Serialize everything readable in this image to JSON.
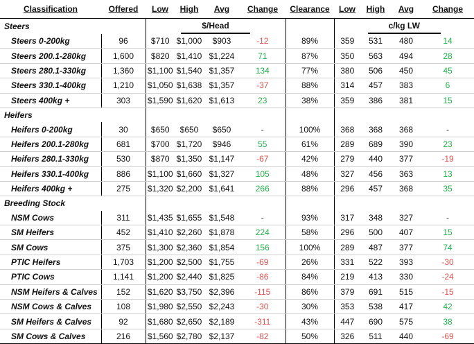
{
  "headers": {
    "classification": "Classification",
    "offered": "Offered",
    "low": "Low",
    "high": "High",
    "avg": "Avg",
    "change": "Change",
    "clearance": "Clearance",
    "low2": "Low",
    "high2": "High",
    "avg2": "Avg",
    "change2": "Change"
  },
  "units": {
    "head": "$/Head",
    "kg": "c/kg LW"
  },
  "groups": {
    "steers": "Steers",
    "heifers": "Heifers",
    "breeding": "Breeding Stock"
  },
  "colors": {
    "positive": "#22b14c",
    "negative": "#d9534f"
  },
  "rows": [
    {
      "label": "Steers 0-200kg",
      "offered": "96",
      "low": "$710",
      "high": "$1,000",
      "avg": "$903",
      "change": "-12",
      "clearance": "89%",
      "kg_low": "359",
      "kg_high": "531",
      "kg_avg": "480",
      "kg_change": "14"
    },
    {
      "label": "Steers 200.1-280kg",
      "offered": "1,600",
      "low": "$820",
      "high": "$1,410",
      "avg": "$1,224",
      "change": "71",
      "clearance": "87%",
      "kg_low": "350",
      "kg_high": "563",
      "kg_avg": "494",
      "kg_change": "28"
    },
    {
      "label": "Steers 280.1-330kg",
      "offered": "1,360",
      "low": "$1,100",
      "high": "$1,540",
      "avg": "$1,357",
      "change": "134",
      "clearance": "77%",
      "kg_low": "380",
      "kg_high": "506",
      "kg_avg": "450",
      "kg_change": "45"
    },
    {
      "label": "Steers 330.1-400kg",
      "offered": "1,210",
      "low": "$1,050",
      "high": "$1,638",
      "avg": "$1,357",
      "change": "-37",
      "clearance": "88%",
      "kg_low": "314",
      "kg_high": "457",
      "kg_avg": "383",
      "kg_change": "6"
    },
    {
      "label": "Steers 400kg +",
      "offered": "303",
      "low": "$1,590",
      "high": "$1,620",
      "avg": "$1,613",
      "change": "23",
      "clearance": "38%",
      "kg_low": "359",
      "kg_high": "386",
      "kg_avg": "381",
      "kg_change": "15"
    },
    {
      "label": "Heifers 0-200kg",
      "offered": "30",
      "low": "$650",
      "high": "$650",
      "avg": "$650",
      "change": "-",
      "clearance": "100%",
      "kg_low": "368",
      "kg_high": "368",
      "kg_avg": "368",
      "kg_change": "-"
    },
    {
      "label": "Heifers 200.1-280kg",
      "offered": "681",
      "low": "$700",
      "high": "$1,720",
      "avg": "$946",
      "change": "55",
      "clearance": "61%",
      "kg_low": "289",
      "kg_high": "689",
      "kg_avg": "390",
      "kg_change": "23"
    },
    {
      "label": "Heifers 280.1-330kg",
      "offered": "530",
      "low": "$870",
      "high": "$1,350",
      "avg": "$1,147",
      "change": "-67",
      "clearance": "42%",
      "kg_low": "279",
      "kg_high": "440",
      "kg_avg": "377",
      "kg_change": "-19"
    },
    {
      "label": "Heifers 330.1-400kg",
      "offered": "886",
      "low": "$1,100",
      "high": "$1,660",
      "avg": "$1,327",
      "change": "105",
      "clearance": "48%",
      "kg_low": "327",
      "kg_high": "456",
      "kg_avg": "363",
      "kg_change": "13"
    },
    {
      "label": "Heifers 400kg +",
      "offered": "275",
      "low": "$1,320",
      "high": "$2,200",
      "avg": "$1,641",
      "change": "266",
      "clearance": "88%",
      "kg_low": "296",
      "kg_high": "457",
      "kg_avg": "368",
      "kg_change": "35"
    },
    {
      "label": "NSM Cows",
      "offered": "311",
      "low": "$1,435",
      "high": "$1,655",
      "avg": "$1,548",
      "change": "-",
      "clearance": "93%",
      "kg_low": "317",
      "kg_high": "348",
      "kg_avg": "327",
      "kg_change": "-"
    },
    {
      "label": "SM Heifers",
      "offered": "452",
      "low": "$1,410",
      "high": "$2,260",
      "avg": "$1,878",
      "change": "224",
      "clearance": "58%",
      "kg_low": "296",
      "kg_high": "500",
      "kg_avg": "407",
      "kg_change": "15"
    },
    {
      "label": "SM Cows",
      "offered": "375",
      "low": "$1,300",
      "high": "$2,360",
      "avg": "$1,854",
      "change": "156",
      "clearance": "100%",
      "kg_low": "289",
      "kg_high": "487",
      "kg_avg": "377",
      "kg_change": "74"
    },
    {
      "label": "PTIC Heifers",
      "offered": "1,703",
      "low": "$1,200",
      "high": "$2,500",
      "avg": "$1,755",
      "change": "-69",
      "clearance": "26%",
      "kg_low": "331",
      "kg_high": "522",
      "kg_avg": "393",
      "kg_change": "-30"
    },
    {
      "label": "PTIC Cows",
      "offered": "1,141",
      "low": "$1,200",
      "high": "$2,440",
      "avg": "$1,825",
      "change": "-86",
      "clearance": "84%",
      "kg_low": "219",
      "kg_high": "413",
      "kg_avg": "330",
      "kg_change": "-24"
    },
    {
      "label": "NSM Heifers & Calves",
      "offered": "152",
      "low": "$1,620",
      "high": "$3,750",
      "avg": "$2,396",
      "change": "-115",
      "clearance": "86%",
      "kg_low": "379",
      "kg_high": "691",
      "kg_avg": "515",
      "kg_change": "-15"
    },
    {
      "label": "NSM Cows & Calves",
      "offered": "108",
      "low": "$1,980",
      "high": "$2,550",
      "avg": "$2,243",
      "change": "-30",
      "clearance": "30%",
      "kg_low": "353",
      "kg_high": "538",
      "kg_avg": "417",
      "kg_change": "42"
    },
    {
      "label": "SM Heifers & Calves",
      "offered": "92",
      "low": "$1,680",
      "high": "$2,650",
      "avg": "$2,189",
      "change": "-311",
      "clearance": "43%",
      "kg_low": "447",
      "kg_high": "690",
      "kg_avg": "575",
      "kg_change": "38"
    },
    {
      "label": "SM Cows & Calves",
      "offered": "216",
      "low": "$1,560",
      "high": "$2,780",
      "avg": "$2,137",
      "change": "-82",
      "clearance": "50%",
      "kg_low": "326",
      "kg_high": "511",
      "kg_avg": "440",
      "kg_change": "-69"
    }
  ]
}
